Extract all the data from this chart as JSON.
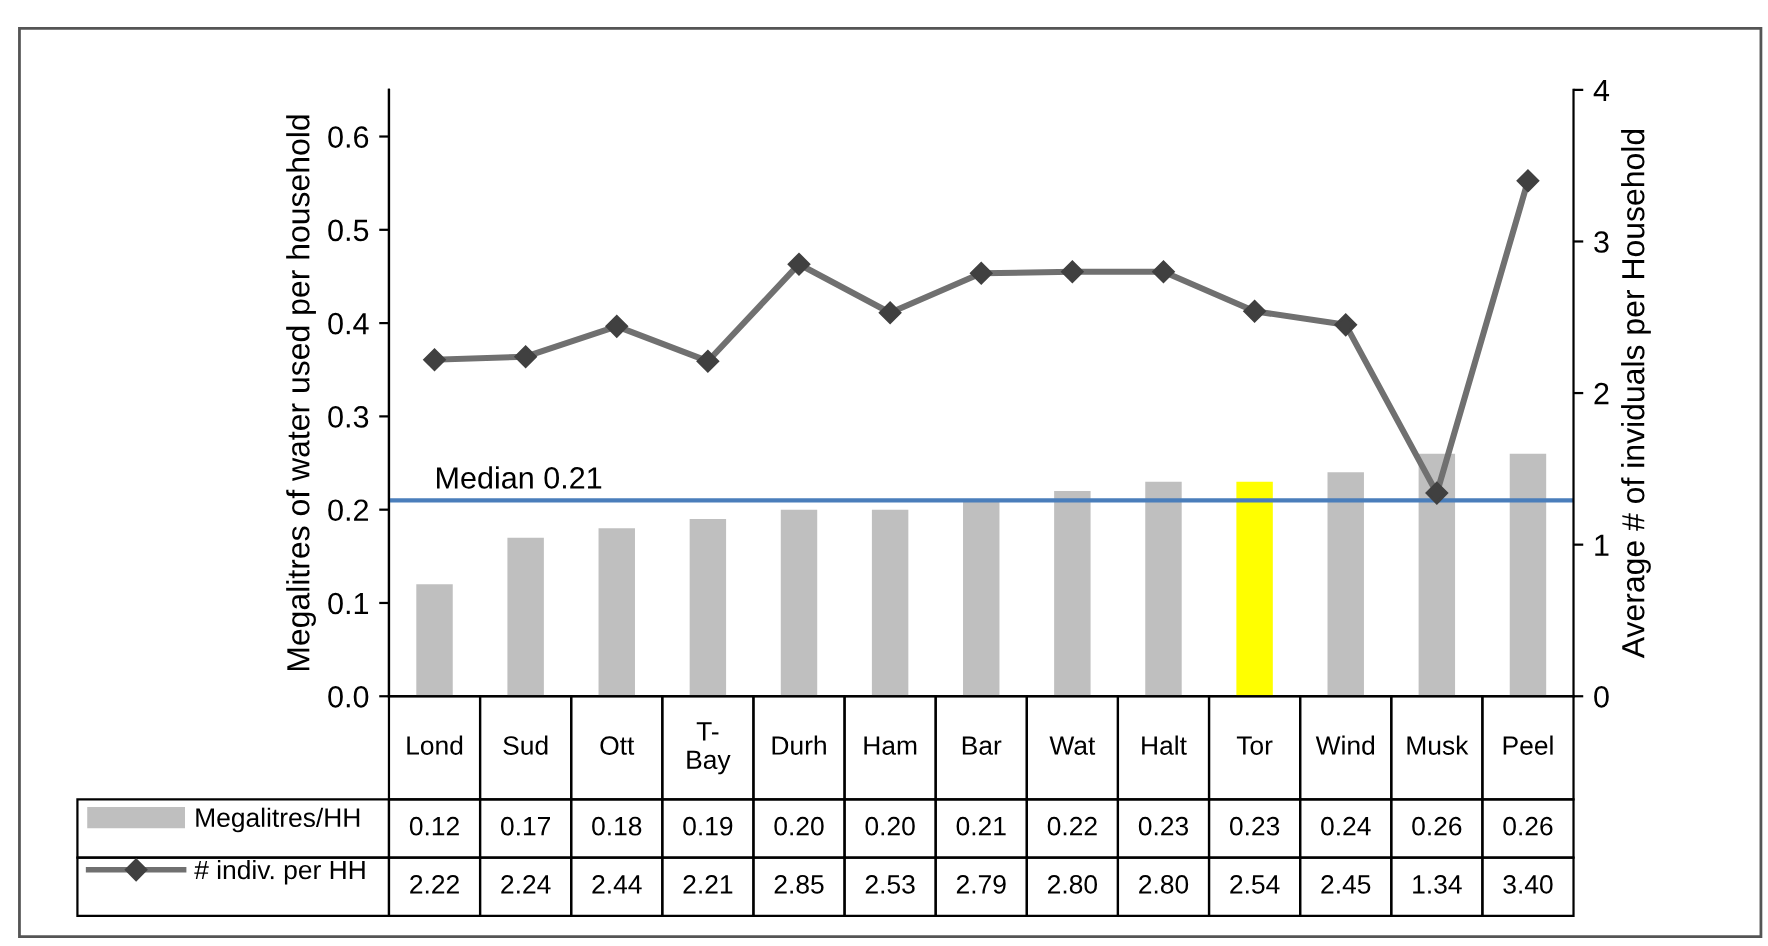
{
  "chart_data": {
    "type": "bar",
    "ylabel": "Megalitres of water used per household",
    "y2label": "Average # of inviduals per Household",
    "categories": [
      "Lond",
      "Sud",
      "Ott",
      "T-Bay",
      "Durh",
      "Ham",
      "Bar",
      "Wat",
      "Halt",
      "Tor",
      "Wind",
      "Musk",
      "Peel"
    ],
    "series": [
      {
        "name": "Megalitres/HH",
        "color": "#bfbfbf",
        "colors": [
          "#bfbfbf",
          "#bfbfbf",
          "#bfbfbf",
          "#bfbfbf",
          "#bfbfbf",
          "#bfbfbf",
          "#bfbfbf",
          "#bfbfbf",
          "#bfbfbf",
          "#ffff00",
          "#bfbfbf",
          "#bfbfbf",
          "#bfbfbf"
        ],
        "values": [
          0.12,
          0.17,
          0.18,
          0.19,
          0.2,
          0.2,
          0.21,
          0.22,
          0.23,
          0.23,
          0.24,
          0.26,
          0.26
        ],
        "value_labels": [
          "0.12",
          "0.17",
          "0.18",
          "0.19",
          "0.20",
          "0.20",
          "0.21",
          "0.22",
          "0.23",
          "0.23",
          "0.24",
          "0.26",
          "0.26"
        ]
      },
      {
        "name": "# indiv. per HH",
        "type": "line",
        "axis": "y2",
        "color": "#707070",
        "marker": "diamond",
        "line_style": "solid",
        "values": [
          2.22,
          2.24,
          2.44,
          2.21,
          2.85,
          2.53,
          2.79,
          2.8,
          2.8,
          2.54,
          2.45,
          1.34,
          3.4
        ],
        "value_labels": [
          "2.22",
          "2.24",
          "2.44",
          "2.21",
          "2.85",
          "2.53",
          "2.79",
          "2.80",
          "2.80",
          "2.54",
          "2.45",
          "1.34",
          "3.40"
        ]
      }
    ],
    "ylim": [
      0,
      0.65
    ],
    "yticks": [
      {
        "value": 0,
        "label": "0.0"
      },
      {
        "value": 0.1,
        "label": "0.1"
      },
      {
        "value": 0.2,
        "label": "0.2"
      },
      {
        "value": 0.3,
        "label": "0.3"
      },
      {
        "value": 0.4,
        "label": "0.4"
      },
      {
        "value": 0.5,
        "label": "0.5"
      },
      {
        "value": 0.6,
        "label": "0.6"
      }
    ],
    "y2lim": [
      0,
      4
    ],
    "y2ticks": [
      0,
      1,
      2,
      3,
      4
    ],
    "ref_lines": [
      {
        "axis": "y",
        "value": 0.21,
        "label": "Median 0.21",
        "color": "#4a7ebb",
        "line_style": "solid"
      }
    ],
    "legend": "bottom",
    "grid": false
  }
}
